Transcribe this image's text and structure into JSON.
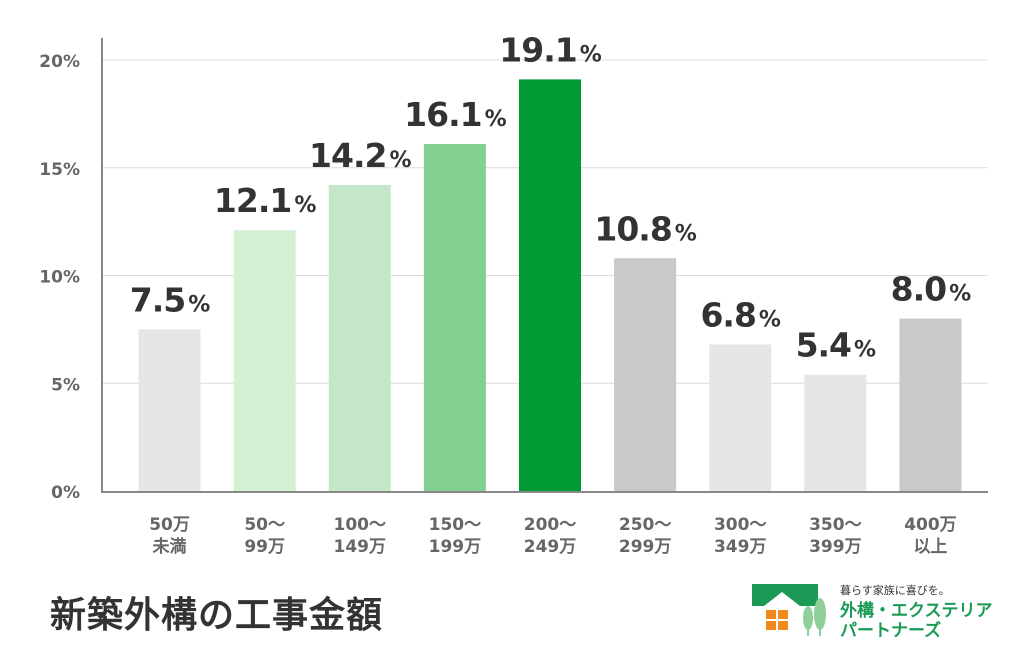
{
  "chart_data": {
    "type": "bar",
    "title": "新築外構の工事金額",
    "categories": [
      [
        "50万",
        "未満"
      ],
      [
        "50～",
        "99万"
      ],
      [
        "100～",
        "149万"
      ],
      [
        "150～",
        "199万"
      ],
      [
        "200～",
        "249万"
      ],
      [
        "250～",
        "299万"
      ],
      [
        "300～",
        "349万"
      ],
      [
        "350～",
        "399万"
      ],
      [
        "400万",
        "以上"
      ]
    ],
    "values": [
      7.5,
      12.1,
      14.2,
      16.1,
      19.1,
      10.8,
      6.8,
      5.4,
      8.0
    ],
    "labels": [
      "7.5",
      "12.1",
      "14.2",
      "16.1",
      "19.1",
      "10.8",
      "6.8",
      "5.4",
      "8.0"
    ],
    "unit": "%",
    "colors": [
      "#e6e6e6",
      "#d3efd4",
      "#c4e6c9",
      "#82cf92",
      "#009a35",
      "#c9c9c9",
      "#e6e6e6",
      "#e6e6e6",
      "#c9c9c9"
    ],
    "yticks": [
      "0%",
      "5%",
      "10%",
      "15%",
      "20%"
    ],
    "ytick_values": [
      0,
      5,
      10,
      15,
      20
    ],
    "ylim": [
      0,
      20
    ],
    "xlabel": "",
    "ylabel": "",
    "grid": true
  },
  "logo": {
    "tagline": "暮らす家族に喜びを。",
    "name_line1": "外構・エクステリア",
    "name_line2": "パートナーズ",
    "green": "#1a9a55",
    "orange": "#f08a1c"
  }
}
